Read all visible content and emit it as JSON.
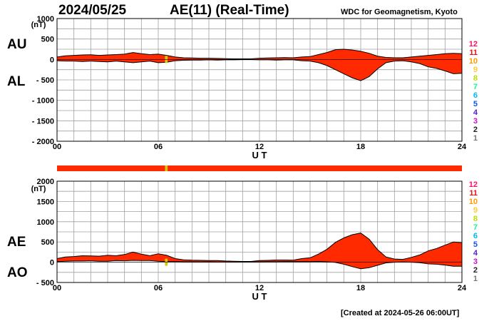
{
  "header": {
    "date": "2024/05/25",
    "title": "AE(11) (Real-Time)",
    "source": "WDC for Geomagnetism, Kyoto"
  },
  "footer": {
    "created": "[Created at 2024-05-26 06:00UT]"
  },
  "colors": {
    "fill": "#ff2a00",
    "status_good": "#ff2a00",
    "status_marker": "#d2cc00",
    "grid": "#a0a0a0",
    "legend": [
      "#ff1166",
      "#ee1111",
      "#ff9900",
      "#ffcc33",
      "#b8e000",
      "#22ee99",
      "#00bbee",
      "#1155ee",
      "#5522cc",
      "#cc11cc",
      "#222222",
      "#777777",
      "#cccccc"
    ]
  },
  "legend_labels": [
    "12",
    "11",
    "10",
    "9",
    "8",
    "7",
    "6",
    "5",
    "4",
    "3",
    "2",
    "1"
  ],
  "status_bar": {
    "good_station_count": 11,
    "dip_hours": [
      6.4,
      6.55
    ]
  },
  "chart_data": [
    {
      "type": "area",
      "panel": "AU/AL",
      "series_labels": [
        "AU",
        "AL"
      ],
      "xlabel": "U T",
      "unit_label": "(nT)",
      "xlim": [
        0,
        24
      ],
      "ylim": [
        -2000,
        1000
      ],
      "x_ticks": [
        "00",
        "06",
        "12",
        "18",
        "24"
      ],
      "y_ticks": [
        "1000",
        "500",
        "0",
        "- 500",
        "- 1000",
        "- 1500",
        "- 2000"
      ],
      "x_hours": [
        0,
        0.5,
        1,
        1.5,
        2,
        2.5,
        3,
        3.5,
        4,
        4.5,
        5,
        5.5,
        6,
        6.5,
        7,
        7.5,
        8,
        8.5,
        9,
        9.5,
        10,
        10.5,
        11,
        11.5,
        12,
        12.5,
        13,
        13.5,
        14,
        14.5,
        15,
        15.5,
        16,
        16.5,
        17,
        17.5,
        18,
        18.5,
        19,
        19.5,
        20,
        20.5,
        21,
        21.5,
        22,
        22.5,
        23,
        23.5,
        24
      ],
      "upper": [
        60,
        90,
        100,
        110,
        115,
        100,
        110,
        120,
        130,
        170,
        140,
        120,
        130,
        100,
        60,
        40,
        35,
        30,
        30,
        25,
        20,
        15,
        15,
        15,
        30,
        35,
        40,
        45,
        40,
        60,
        70,
        120,
        170,
        240,
        250,
        230,
        200,
        150,
        80,
        50,
        40,
        40,
        60,
        80,
        100,
        120,
        140,
        150,
        140
      ],
      "lower": [
        -30,
        -40,
        -40,
        -50,
        -40,
        -50,
        -60,
        -40,
        -60,
        -80,
        -60,
        -40,
        -80,
        -70,
        -30,
        -20,
        -15,
        -15,
        -10,
        -15,
        -10,
        -10,
        -5,
        -5,
        -10,
        -10,
        -15,
        -10,
        -10,
        -30,
        -40,
        -80,
        -150,
        -250,
        -350,
        -450,
        -520,
        -420,
        -230,
        -80,
        -40,
        -30,
        -60,
        -100,
        -180,
        -220,
        -280,
        -350,
        -340
      ]
    },
    {
      "type": "area",
      "panel": "AE/AO",
      "series_labels": [
        "AE",
        "AO"
      ],
      "xlabel": "U T",
      "unit_label": "(nT)",
      "xlim": [
        0,
        24
      ],
      "ylim": [
        -500,
        2000
      ],
      "x_ticks": [
        "00",
        "06",
        "12",
        "18",
        "24"
      ],
      "y_ticks": [
        "2000",
        "1500",
        "1000",
        "500",
        "0",
        "- 500"
      ],
      "x_hours": [
        0,
        0.5,
        1,
        1.5,
        2,
        2.5,
        3,
        3.5,
        4,
        4.5,
        5,
        5.5,
        6,
        6.5,
        7,
        7.5,
        8,
        8.5,
        9,
        9.5,
        10,
        10.5,
        11,
        11.5,
        12,
        12.5,
        13,
        13.5,
        14,
        14.5,
        15,
        15.5,
        16,
        16.5,
        17,
        17.5,
        18,
        18.5,
        19,
        19.5,
        20,
        20.5,
        21,
        21.5,
        22,
        22.5,
        23,
        23.5,
        24
      ],
      "upper": [
        90,
        130,
        140,
        160,
        155,
        150,
        170,
        160,
        190,
        250,
        200,
        160,
        210,
        170,
        90,
        60,
        50,
        45,
        40,
        40,
        30,
        25,
        20,
        20,
        40,
        45,
        55,
        55,
        50,
        90,
        110,
        200,
        320,
        490,
        600,
        680,
        720,
        570,
        310,
        130,
        80,
        70,
        120,
        180,
        280,
        340,
        420,
        500,
        480
      ],
      "lower": [
        15,
        25,
        30,
        30,
        35,
        25,
        25,
        40,
        35,
        45,
        40,
        40,
        25,
        15,
        15,
        10,
        10,
        8,
        10,
        5,
        5,
        3,
        5,
        5,
        10,
        12,
        12,
        17,
        15,
        15,
        15,
        20,
        10,
        -5,
        -50,
        -110,
        -160,
        -135,
        -75,
        -15,
        0,
        5,
        0,
        -10,
        -40,
        -50,
        -70,
        -100,
        -100
      ]
    }
  ]
}
